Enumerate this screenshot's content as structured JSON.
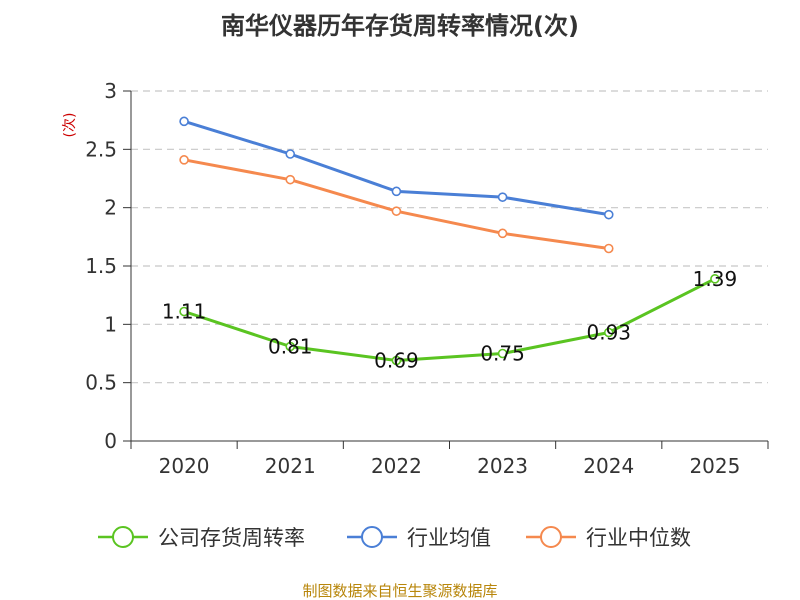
{
  "chart_data": {
    "type": "line",
    "title": "南华仪器历年存货周转率情况(次)",
    "ylabel": "(次)",
    "categories": [
      "2020",
      "2021",
      "2022",
      "2023",
      "2024",
      "2025"
    ],
    "y_ticks": [
      "0",
      "0.5",
      "1",
      "1.5",
      "2",
      "2.5",
      "3"
    ],
    "ylim": [
      0,
      3
    ],
    "grid": true,
    "legend_position": "bottom",
    "series": [
      {
        "name": "公司存货周转率",
        "color": "#5ac421",
        "values": [
          1.11,
          0.81,
          0.69,
          0.75,
          0.93,
          1.39
        ],
        "labels": [
          "1.11",
          "0.81",
          "0.69",
          "0.75",
          "0.93",
          "1.39"
        ]
      },
      {
        "name": "行业均值",
        "color": "#4a7fd6",
        "values": [
          2.74,
          2.46,
          2.14,
          2.09,
          1.94,
          null
        ]
      },
      {
        "name": "行业中位数",
        "color": "#f5894e",
        "values": [
          2.41,
          2.24,
          1.97,
          1.78,
          1.65,
          null
        ]
      }
    ]
  },
  "source": "制图数据来自恒生聚源数据库"
}
